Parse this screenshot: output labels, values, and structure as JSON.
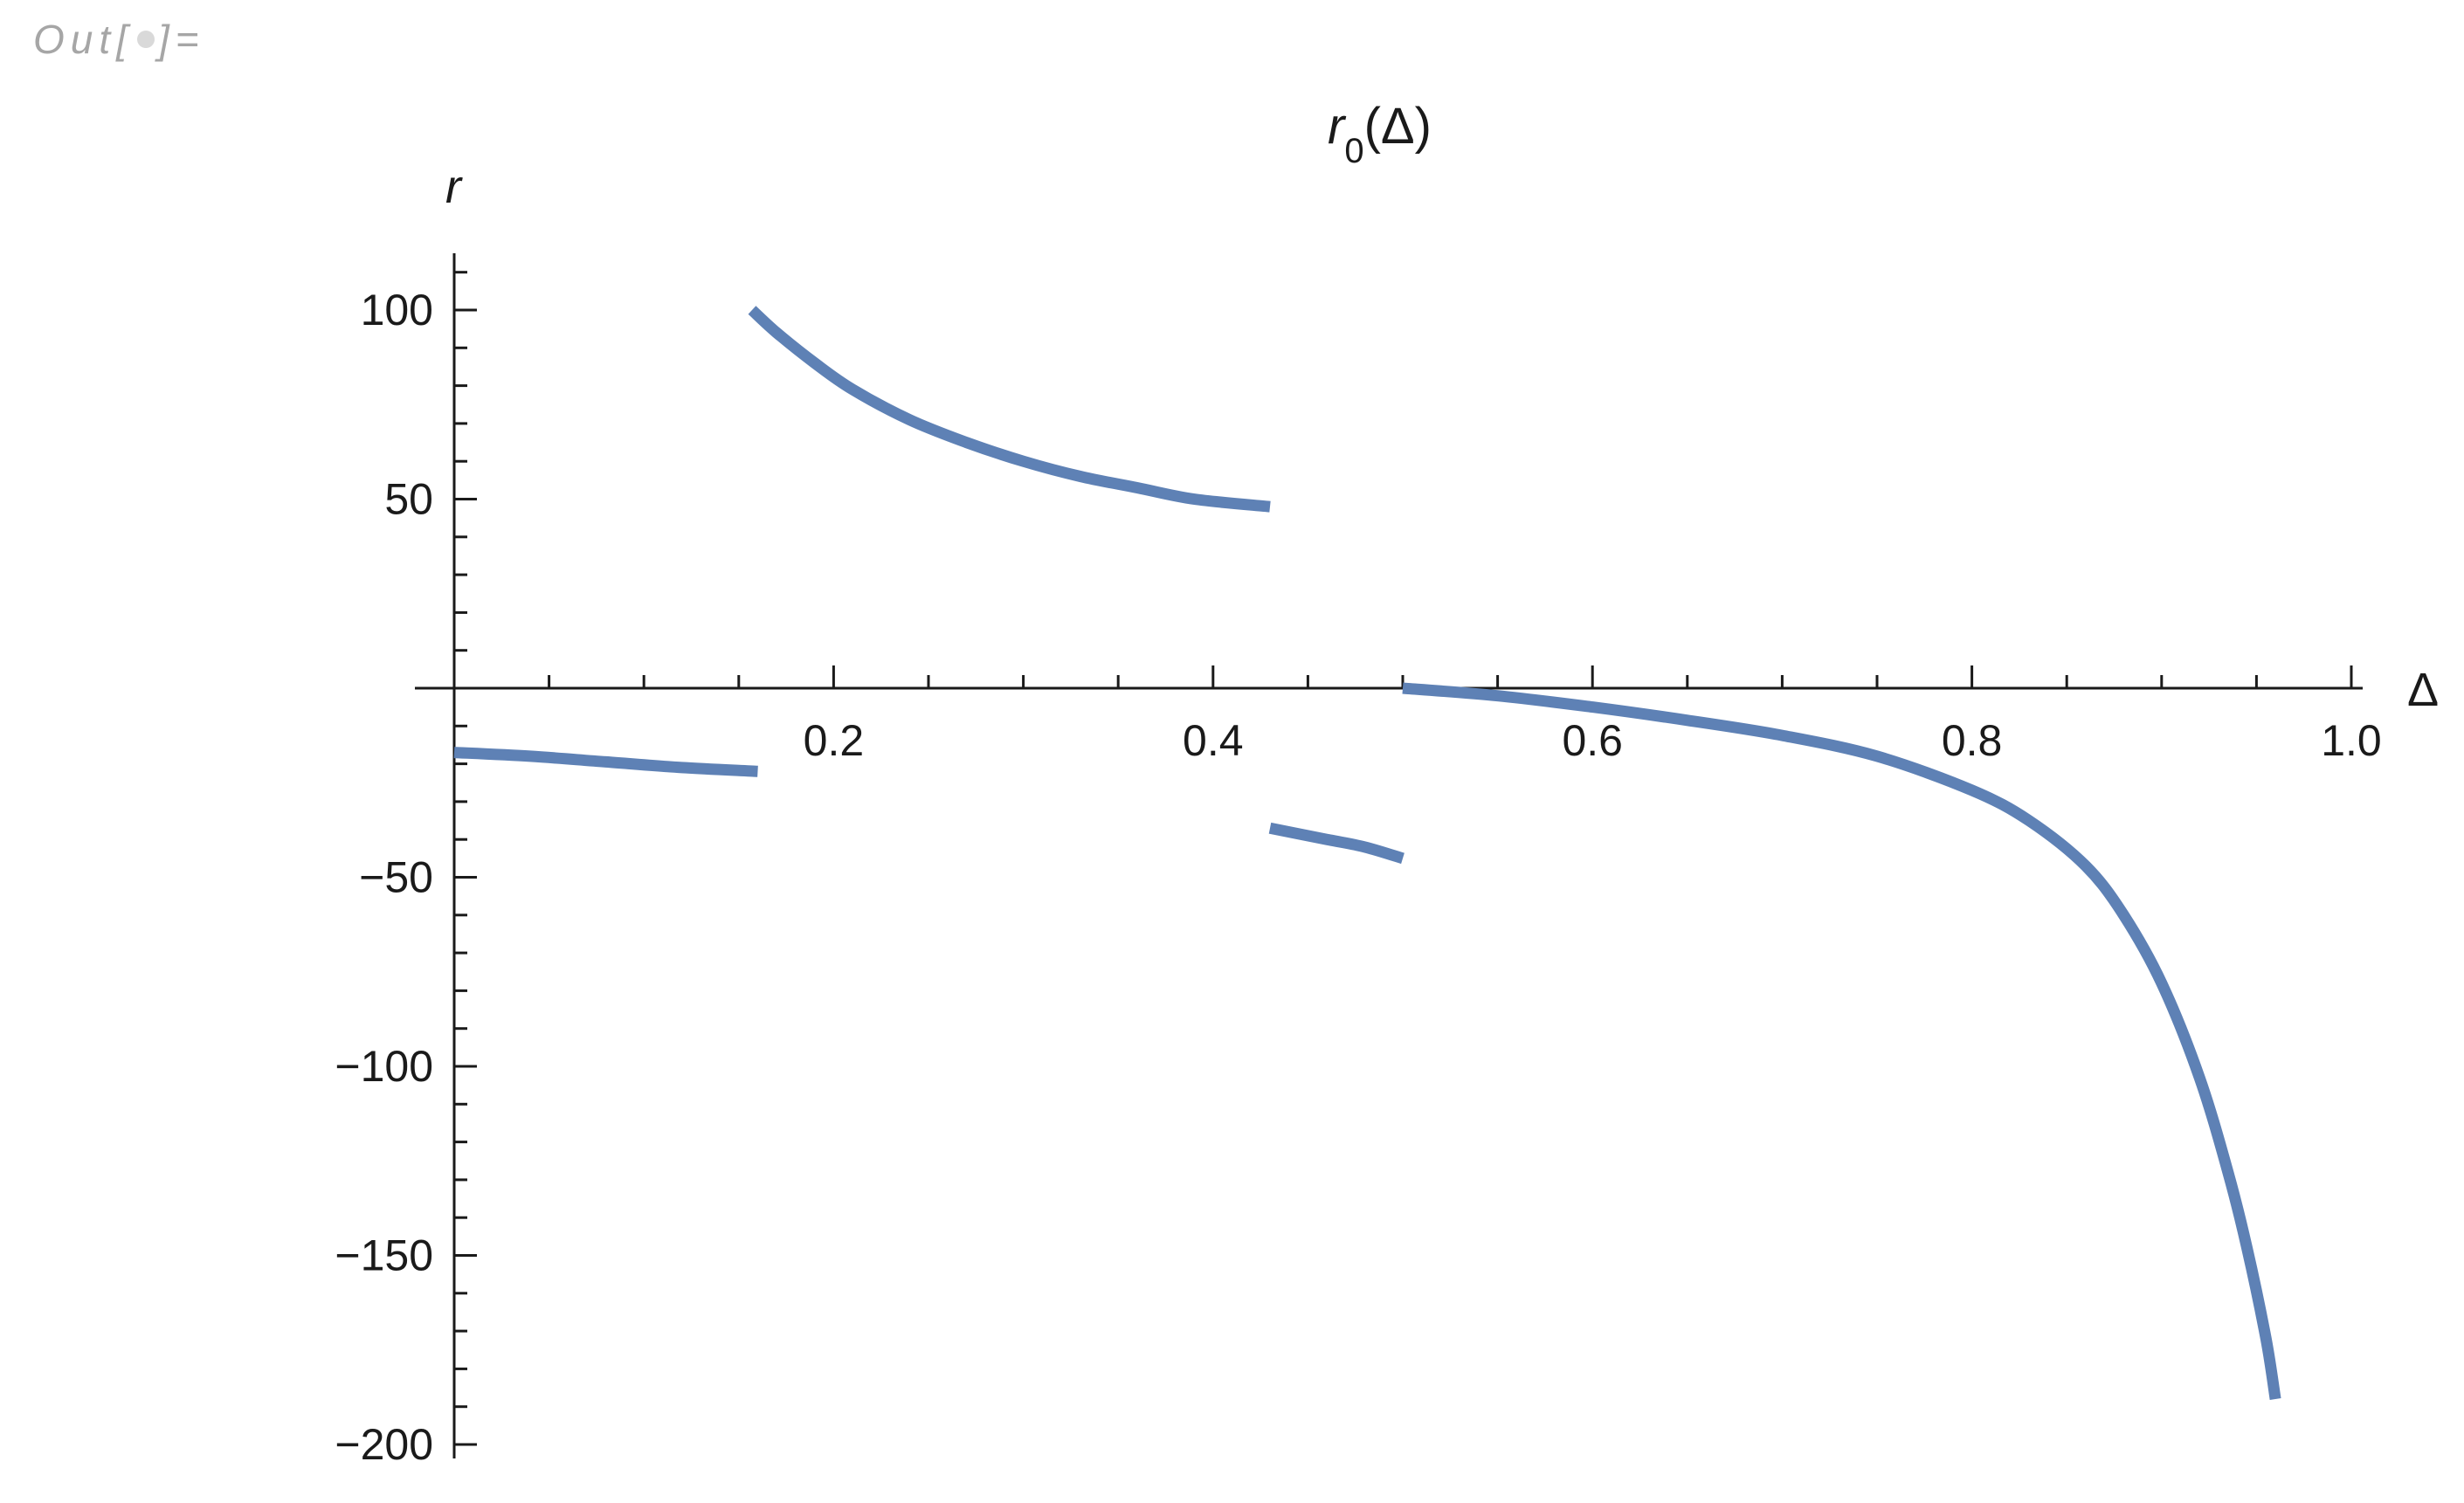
{
  "cell_label": {
    "prefix": "Out[",
    "suffix": "]="
  },
  "chart_data": {
    "type": "line",
    "title": "r0(Δ)",
    "title_parts": {
      "base": "r",
      "subscript": "0",
      "arg": "(Δ)"
    },
    "xlabel": "Δ",
    "ylabel": "r",
    "xlim": [
      0,
      1.0
    ],
    "ylim": [
      -200,
      110
    ],
    "x_ticks": [
      {
        "value": 0.2,
        "label": "0.2"
      },
      {
        "value": 0.4,
        "label": "0.4"
      },
      {
        "value": 0.6,
        "label": "0.6"
      },
      {
        "value": 0.8,
        "label": "0.8"
      },
      {
        "value": 1.0,
        "label": "1.0"
      }
    ],
    "y_ticks": [
      {
        "value": 100,
        "label": "100"
      },
      {
        "value": 50,
        "label": "50"
      },
      {
        "value": -50,
        "label": "−50"
      },
      {
        "value": -100,
        "label": "−100"
      },
      {
        "value": -150,
        "label": "−150"
      },
      {
        "value": -200,
        "label": "−200"
      }
    ],
    "x_minor_step": 0.05,
    "y_minor_step": 10,
    "grid": false,
    "line_color": "#5e81b5",
    "series": [
      {
        "x": [
          0.0,
          0.04,
          0.08,
          0.12,
          0.16
        ],
        "y": [
          -17,
          -18,
          -19.5,
          -21,
          -22
        ]
      },
      {
        "x": [
          0.157,
          0.17,
          0.19,
          0.21,
          0.24,
          0.27,
          0.3,
          0.33,
          0.36,
          0.39,
          0.43
        ],
        "y": [
          100,
          94,
          86,
          79,
          71,
          65,
          60,
          56,
          53,
          50,
          48
        ]
      },
      {
        "x": [
          0.43,
          0.46,
          0.48,
          0.5
        ],
        "y": [
          -37,
          -40,
          -42,
          -45
        ]
      },
      {
        "x": [
          0.5,
          0.55,
          0.6,
          0.65,
          0.7,
          0.75,
          0.8,
          0.83,
          0.86,
          0.88,
          0.9,
          0.92,
          0.935,
          0.945,
          0.955,
          0.96
        ],
        "y": [
          0,
          -2,
          -5,
          -8.5,
          -12.5,
          -18,
          -27,
          -35,
          -47,
          -60,
          -78,
          -103,
          -128,
          -148,
          -172,
          -188
        ]
      }
    ]
  }
}
